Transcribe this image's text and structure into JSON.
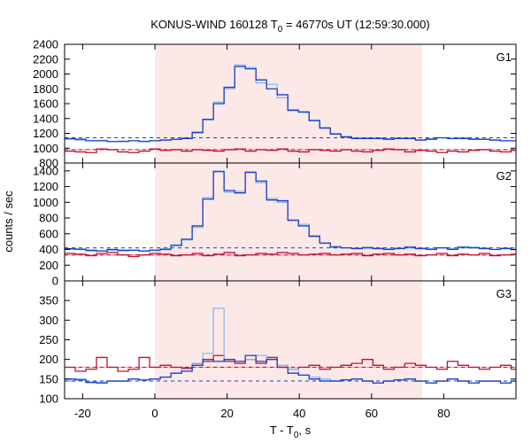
{
  "chart_data": {
    "type": "line",
    "title": {
      "prefix": "KONUS-WIND 160128 T",
      "sub": "0",
      "suffix": " = 46770s UT (12:59:30.000)"
    },
    "xlabel": {
      "prefix": "T - T",
      "sub": "0",
      "suffix": ", s"
    },
    "ylabel": "counts / sec",
    "xlim": [
      -25,
      100
    ],
    "xticks": [
      -20,
      0,
      20,
      40,
      60,
      80
    ],
    "shaded_interval": {
      "x": [
        0,
        74
      ],
      "color": "#fde8e8"
    },
    "colors": {
      "light_blue": "#7fbcf0",
      "dark_blue": "#1a3fc4",
      "red": "#c0102a",
      "pink_line": "#e8a0c8",
      "frame": "#000000"
    },
    "panels": [
      {
        "label": "G1",
        "ylim": [
          800,
          2400
        ],
        "yticks": [
          800,
          1000,
          1200,
          1400,
          1600,
          1800,
          2000,
          2200,
          2400
        ],
        "bins": {
          "start": -25,
          "step": 2.944,
          "light_blue": [
            1120,
            1110,
            1100,
            1105,
            1090,
            1095,
            1100,
            1095,
            1100,
            1110,
            1120,
            1140,
            1220,
            1380,
            1620,
            1800,
            2120,
            2090,
            1880,
            1860,
            1680,
            1520,
            1480,
            1380,
            1280,
            1200,
            1160,
            1140,
            1140,
            1140,
            1130,
            1140,
            1140,
            1110,
            1130,
            1140,
            1130,
            1140,
            1130,
            1120,
            1110,
            1100,
            1100
          ],
          "dark_blue": [
            1130,
            1120,
            1100,
            1100,
            1090,
            1090,
            1100,
            1090,
            1100,
            1110,
            1120,
            1130,
            1210,
            1390,
            1600,
            1820,
            2100,
            2070,
            1920,
            1800,
            1720,
            1510,
            1490,
            1370,
            1270,
            1190,
            1150,
            1130,
            1130,
            1130,
            1120,
            1130,
            1130,
            1110,
            1120,
            1140,
            1130,
            1130,
            1120,
            1120,
            1110,
            1100,
            1100
          ],
          "red": [
            960,
            950,
            940,
            990,
            980,
            950,
            940,
            960,
            990,
            970,
            980,
            960,
            980,
            970,
            960,
            980,
            990,
            960,
            980,
            970,
            990,
            960,
            950,
            980,
            970,
            960,
            980,
            960,
            950,
            970,
            990,
            980,
            950,
            970,
            960,
            940,
            960,
            950,
            970,
            980,
            960,
            950,
            970
          ]
        },
        "blue_dashed": 1140,
        "red_dashed": 980,
        "pink_level": 980
      },
      {
        "label": "G2",
        "ylim": [
          0,
          1500
        ],
        "yticks": [
          0,
          200,
          400,
          600,
          800,
          1000,
          1200,
          1400
        ],
        "bins": {
          "start": -25,
          "step": 2.944,
          "light_blue": [
            400,
            410,
            380,
            380,
            390,
            380,
            390,
            380,
            390,
            410,
            460,
            520,
            680,
            1060,
            1400,
            1130,
            1140,
            1390,
            1250,
            1050,
            1000,
            780,
            720,
            560,
            480,
            440,
            420,
            420,
            430,
            420,
            410,
            420,
            420,
            420,
            410,
            420,
            410,
            420,
            430,
            420,
            400,
            420,
            400
          ],
          "dark_blue": [
            410,
            400,
            390,
            380,
            400,
            390,
            390,
            380,
            390,
            400,
            450,
            530,
            700,
            1040,
            1390,
            1150,
            1120,
            1380,
            1270,
            1030,
            1020,
            770,
            700,
            570,
            480,
            430,
            420,
            410,
            420,
            410,
            400,
            410,
            430,
            410,
            400,
            420,
            400,
            430,
            420,
            410,
            400,
            410,
            400
          ],
          "red": [
            350,
            340,
            320,
            350,
            360,
            330,
            310,
            330,
            350,
            340,
            320,
            330,
            350,
            320,
            340,
            360,
            320,
            330,
            350,
            340,
            360,
            350,
            330,
            340,
            350,
            330,
            340,
            350,
            320,
            340,
            350,
            330,
            340,
            320,
            330,
            350,
            320,
            340,
            330,
            350,
            320,
            330,
            340
          ]
        },
        "blue_dashed": 420,
        "red_dashed": 330,
        "pink_level": 330
      },
      {
        "label": "G3",
        "ylim": [
          100,
          400
        ],
        "yticks": [
          100,
          150,
          200,
          250,
          300,
          350
        ],
        "bins": {
          "start": -25,
          "step": 2.944,
          "light_blue": [
            145,
            150,
            140,
            142,
            145,
            145,
            150,
            148,
            150,
            155,
            165,
            175,
            190,
            215,
            330,
            200,
            195,
            200,
            210,
            200,
            185,
            175,
            160,
            155,
            150,
            145,
            148,
            150,
            145,
            140,
            145,
            148,
            150,
            145,
            140,
            145,
            150,
            145,
            140,
            145,
            145,
            140,
            145
          ],
          "dark_blue": [
            150,
            148,
            142,
            140,
            145,
            145,
            150,
            148,
            150,
            155,
            165,
            170,
            185,
            200,
            195,
            200,
            195,
            210,
            195,
            200,
            180,
            165,
            160,
            150,
            145,
            145,
            148,
            150,
            145,
            140,
            145,
            148,
            150,
            145,
            140,
            145,
            150,
            145,
            140,
            145,
            145,
            140,
            145
          ],
          "red": [
            180,
            170,
            175,
            205,
            180,
            170,
            175,
            205,
            180,
            185,
            180,
            178,
            190,
            195,
            210,
            195,
            190,
            200,
            190,
            205,
            180,
            175,
            180,
            185,
            175,
            180,
            185,
            190,
            200,
            185,
            175,
            180,
            190,
            185,
            180,
            175,
            195,
            185,
            180,
            175,
            180,
            185,
            175
          ]
        },
        "blue_dashed": 145,
        "red_dashed": 180,
        "pink_level": 180
      }
    ]
  }
}
